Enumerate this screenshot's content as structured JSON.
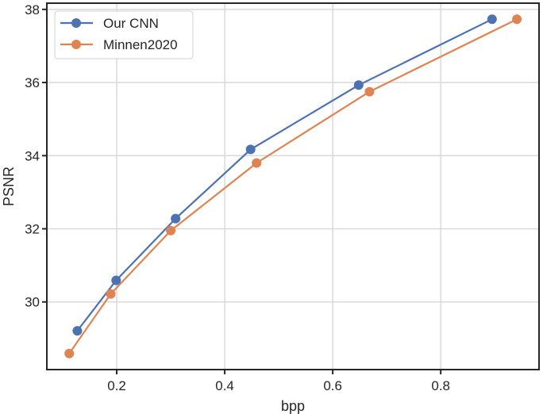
{
  "chart_data": {
    "type": "line",
    "title": "",
    "xlabel": "bpp",
    "ylabel": "PSNR",
    "xlim": [
      0.0706,
      0.982
    ],
    "ylim": [
      28.15,
      38.17
    ],
    "xticks": [
      0.2,
      0.4,
      0.6,
      0.8
    ],
    "xtick_labels": [
      "0.2",
      "0.4",
      "0.6",
      "0.8"
    ],
    "yticks": [
      30,
      32,
      34,
      36,
      38
    ],
    "ytick_labels": [
      "30",
      "32",
      "34",
      "36",
      "38"
    ],
    "grid": true,
    "legend_position": "upper left",
    "series": [
      {
        "name": "Our CNN",
        "color": "#4C72B0",
        "marker": "circle",
        "x": [
          0.127,
          0.199,
          0.309,
          0.448,
          0.648,
          0.895
        ],
        "y": [
          29.21,
          30.59,
          32.28,
          34.17,
          35.93,
          37.73
        ]
      },
      {
        "name": "Minnen2020",
        "color": "#DD8452",
        "marker": "circle",
        "x": [
          0.112,
          0.189,
          0.3,
          0.459,
          0.668,
          0.941
        ],
        "y": [
          28.59,
          30.22,
          31.95,
          33.8,
          35.75,
          37.73
        ]
      }
    ]
  },
  "legend": {
    "items": [
      {
        "label": "Our CNN",
        "color": "#4C72B0"
      },
      {
        "label": "Minnen2020",
        "color": "#DD8452"
      }
    ]
  },
  "axes": {
    "xlabel": "bpp",
    "ylabel": "PSNR"
  }
}
